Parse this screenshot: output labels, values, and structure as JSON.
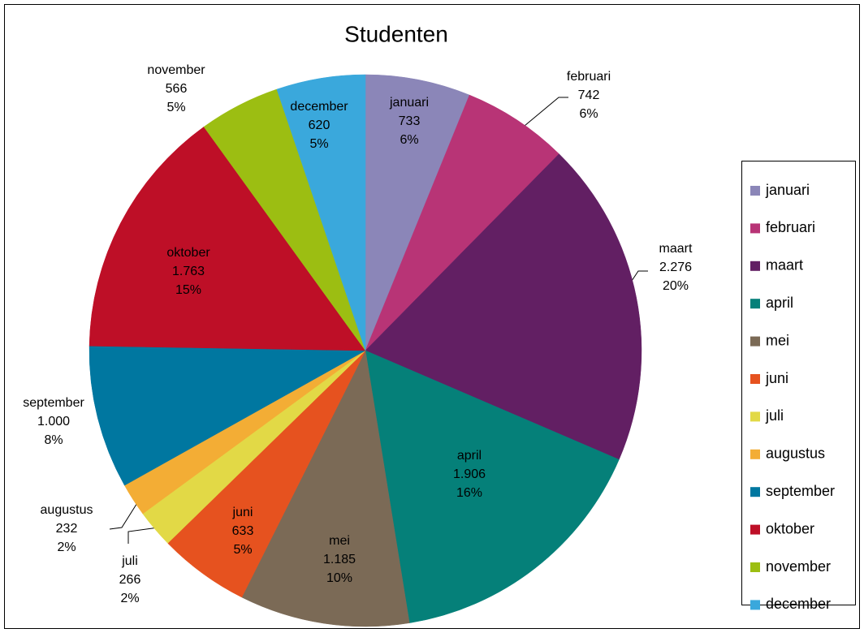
{
  "chart_data": {
    "type": "pie",
    "title": "Studenten",
    "categories": [
      "januari",
      "februari",
      "maart",
      "april",
      "mei",
      "juni",
      "juli",
      "augustus",
      "september",
      "oktober",
      "november",
      "december"
    ],
    "values": [
      733,
      742,
      2276,
      1906,
      1185,
      633,
      266,
      232,
      1000,
      1763,
      566,
      620
    ],
    "value_labels": [
      "733",
      "742",
      "2.276",
      "1.906",
      "1.185",
      "633",
      "266",
      "232",
      "1.000",
      "1.763",
      "566",
      "620"
    ],
    "percent_labels": [
      "6%",
      "6%",
      "20%",
      "16%",
      "10%",
      "5%",
      "2%",
      "2%",
      "8%",
      "15%",
      "5%",
      "5%"
    ],
    "colors": [
      "#8b86b8",
      "#b83476",
      "#621f63",
      "#058079",
      "#7b6a56",
      "#e6521f",
      "#e2d946",
      "#f3ad35",
      "#0077a0",
      "#be0f27",
      "#9cbe12",
      "#3aa8dc"
    ],
    "legend": "right"
  }
}
